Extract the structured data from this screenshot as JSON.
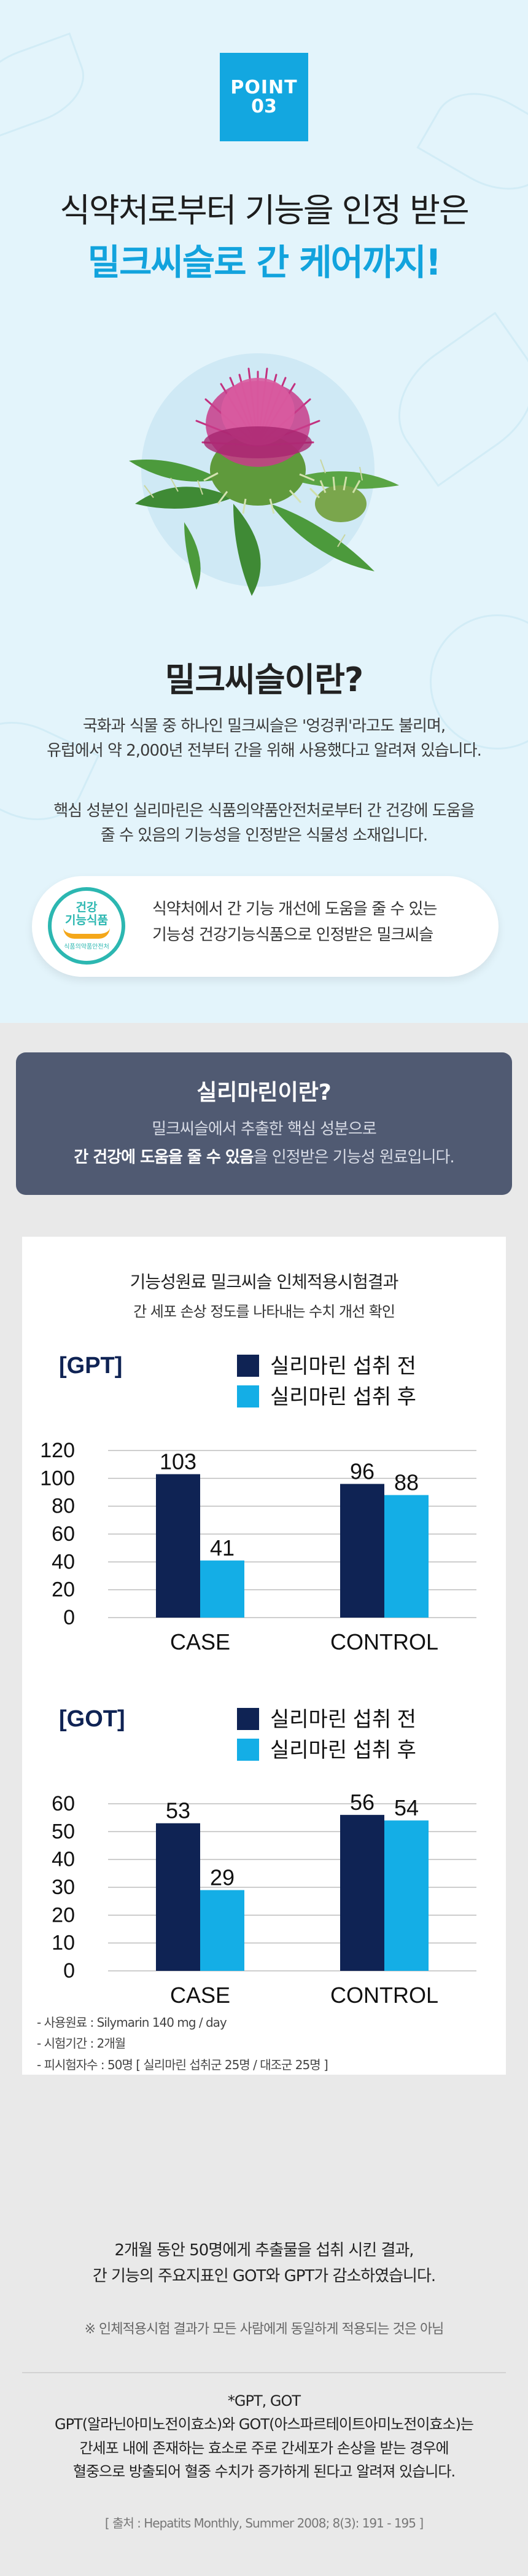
{
  "badge": {
    "line1": "POINT",
    "line2": "03"
  },
  "heading": {
    "sub": "식약처로부터 기능을 인정 받은",
    "main": "밀크씨슬로 간 케어까지!"
  },
  "milk_thistle": {
    "title": "밀크씨슬이란?",
    "para1": [
      "국화과 식물 중 하나인 밀크씨슬은 '엉겅퀴'라고도 불리며,",
      "유럽에서 약 2,000년 전부터 간을 위해 사용했다고 알려져 있습니다."
    ],
    "para2": [
      "핵심 성분인 실리마린은 식품의약품안전처로부터 간 건강에 도움을",
      "줄 수 있음의 기능성을 인정받은 식물성 소재입니다."
    ]
  },
  "pill": {
    "logo_line1": "건강",
    "logo_line2": "기능식품",
    "logo_line3": "식품의약품안전처",
    "text": [
      "식약처에서 간 기능 개선에 도움을 줄 수 있는",
      "기능성 건강기능식품으로 인정받은 밀크씨슬"
    ]
  },
  "silymarin": {
    "title": "실리마린이란?",
    "line1": "밀크씨슬에서 추출한 핵심 성분으로",
    "line2_bold": "간 건강에 도움을 줄 수 있음",
    "line2_rest": "을 인정받은 기능성 원료입니다."
  },
  "study": {
    "title": "기능성원료 밀크씨슬 인체적용시험결과",
    "subtitle": "간 세포 손상 정도를 나타내는 수치 개선 확인"
  },
  "colors": {
    "before": "#0f2354",
    "after": "#14aee6",
    "accent": "#12a3dd"
  },
  "chart_data": [
    {
      "type": "bar",
      "title": "[GPT]",
      "categories": [
        "CASE",
        "CONTROL"
      ],
      "series": [
        {
          "name": "실리마린 섭취 전",
          "values": [
            103,
            96
          ]
        },
        {
          "name": "실리마린 섭취 후",
          "values": [
            41,
            88
          ]
        }
      ],
      "yticks": [
        0,
        20,
        40,
        60,
        80,
        100,
        120
      ],
      "ylim": [
        0,
        120
      ],
      "grid": true,
      "legend": "top-right"
    },
    {
      "type": "bar",
      "title": "[GOT]",
      "categories": [
        "CASE",
        "CONTROL"
      ],
      "series": [
        {
          "name": "실리마린 섭취 전",
          "values": [
            53,
            56
          ]
        },
        {
          "name": "실리마린 섭취 후",
          "values": [
            29,
            54
          ]
        }
      ],
      "yticks": [
        0,
        10,
        20,
        30,
        40,
        50,
        60
      ],
      "ylim": [
        0,
        60
      ],
      "grid": true,
      "legend": "top-right"
    }
  ],
  "notes": [
    "- 사용원료 : Silymarin 140 mg / day",
    "- 시험기간 : 2개월",
    "- 피시험자수 : 50명 [ 실리마린 섭취군 25명 / 대조군 25명 ]"
  ],
  "result": [
    "2개월 동안 50명에게 추출물을 섭취 시킨 결과,",
    "간 기능의 주요지표인 GOT와 GPT가 감소하였습니다."
  ],
  "disclaimer": "※ 인체적용시험 결과가 모든 사람에게 동일하게 적용되는 것은 아님",
  "footnote": [
    "*GPT, GOT",
    "GPT(알라닌아미노전이효소)와 GOT(아스파르테이트아미노전이효소)는",
    "간세포 내에 존재하는 효소로 주로 간세포가 손상을 받는 경우에",
    "혈중으로 방출되어 혈중 수치가 증가하게 된다고 알려져 있습니다."
  ],
  "source": "[ 출처 : Hepatits Monthly, Summer 2008; 8(3): 191 - 195 ]"
}
